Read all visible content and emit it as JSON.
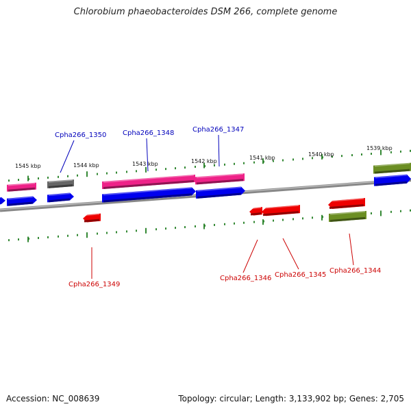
{
  "header": {
    "title": "Chlorobium phaeobacteroides DSM 266, complete genome"
  },
  "footer": {
    "accession": "Accession: NC_008639",
    "topology": "Topology: circular; Length: 3,133,902 bp; Genes: 2,705"
  },
  "colors": {
    "forward_label": "#0000bb",
    "reverse_label": "#cc0000",
    "tick": "#338833",
    "pink": "#ee2288",
    "grey": "#666666",
    "blue": "#0000ee",
    "red": "#ee0000",
    "olive": "#6b8e23",
    "backbone": "#888888"
  },
  "scale": {
    "labels": [
      "1545 kbp",
      "1544 kbp",
      "1543 kbp",
      "1542 kbp",
      "1541 kbp",
      "1540 kbp",
      "1539 kbp"
    ]
  },
  "genes": {
    "forward": [
      "Cpha266_1350",
      "Cpha266_1348",
      "Cpha266_1347"
    ],
    "reverse": [
      "Cpha266_1349",
      "Cpha266_1346",
      "Cpha266_1345",
      "Cpha266_1344"
    ]
  }
}
